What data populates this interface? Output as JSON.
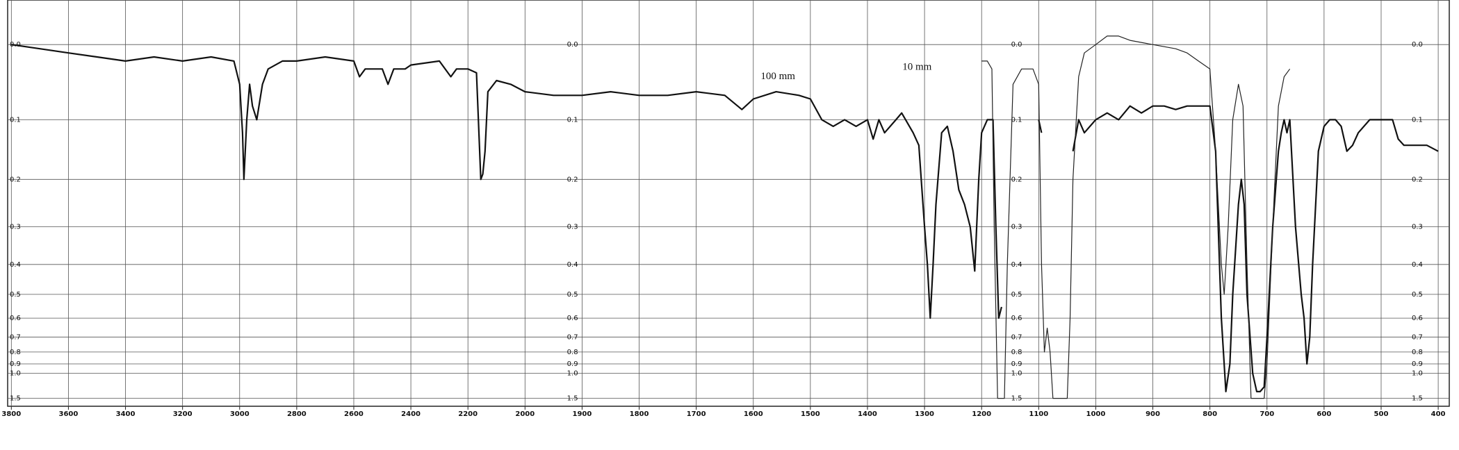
{
  "chart_data": {
    "type": "line",
    "yscale": "transmittance",
    "grid": true,
    "xlim": [
      3800,
      400
    ],
    "ylim": [
      -0.05,
      2
    ],
    "xticks": [
      3800,
      3600,
      3400,
      3200,
      3000,
      2800,
      2600,
      2400,
      2200,
      2000,
      1900,
      1800,
      1700,
      1600,
      1500,
      1400,
      1300,
      1200,
      1100,
      1000,
      900,
      800,
      700,
      600,
      500,
      400
    ],
    "yticks": [
      {
        "value": 0,
        "label": "0.0"
      },
      0.1,
      0.2,
      0.3,
      0.4,
      0.5,
      0.6,
      0.7,
      0.8,
      0.9,
      {
        "value": 1,
        "label": "1.0"
      },
      1.5
    ],
    "series": [
      {
        "name": "100 mm",
        "color": "#111111",
        "x": [
          3800,
          3700,
          3600,
          3500,
          3400,
          3300,
          3200,
          3100,
          3020,
          3000,
          2990,
          2985,
          2975,
          2965,
          2955,
          2940,
          2920,
          2900,
          2850,
          2800,
          2700,
          2600,
          2580,
          2560,
          2500,
          2480,
          2460,
          2420,
          2400,
          2300,
          2260,
          2240,
          2200,
          2170,
          2155,
          2148,
          2140,
          2130,
          2100,
          2050,
          2000,
          1950,
          1900,
          1850,
          1800,
          1750,
          1700,
          1650,
          1620,
          1600,
          1560,
          1520,
          1500,
          1480,
          1460,
          1440,
          1420,
          1400,
          1390,
          1380,
          1370,
          1350,
          1340,
          1320,
          1310,
          1300,
          1295,
          1290,
          1285,
          1280,
          1270,
          1260,
          1250,
          1240,
          1230,
          1220,
          1212,
          1205,
          1200,
          1190,
          1180,
          1175,
          1170,
          1165,
          1160,
          1100,
          1095,
          1090,
          1040,
          1030,
          1020,
          1000,
          980,
          960,
          940,
          920,
          900,
          880,
          860,
          840,
          820,
          800,
          790,
          780,
          772,
          765,
          760,
          750,
          745,
          740,
          735,
          725,
          718,
          712,
          705,
          700,
          690,
          680,
          675,
          670,
          665,
          660,
          650,
          640,
          635,
          630,
          625,
          620,
          610,
          600,
          590,
          580,
          570,
          560,
          550,
          540,
          520,
          500,
          480,
          470,
          460,
          440,
          420,
          400
        ],
        "values": [
          0,
          0.005,
          0.01,
          0.015,
          0.02,
          0.015,
          0.02,
          0.015,
          0.02,
          0.05,
          0.12,
          0.2,
          0.1,
          0.05,
          0.08,
          0.1,
          0.05,
          0.03,
          0.02,
          0.02,
          0.015,
          0.02,
          0.04,
          0.03,
          0.03,
          0.05,
          0.03,
          0.03,
          0.025,
          0.02,
          0.04,
          0.03,
          0.03,
          0.035,
          0.2,
          0.19,
          0.15,
          0.06,
          0.045,
          0.05,
          0.06,
          0.065,
          0.065,
          0.06,
          0.065,
          0.065,
          0.06,
          0.065,
          0.085,
          0.07,
          0.06,
          0.065,
          0.07,
          0.1,
          0.11,
          0.1,
          0.11,
          0.1,
          0.13,
          0.1,
          0.12,
          0.1,
          0.09,
          0.12,
          0.14,
          0.3,
          0.4,
          0.6,
          0.4,
          0.25,
          0.12,
          0.11,
          0.15,
          0.22,
          0.25,
          0.3,
          0.42,
          0.2,
          0.12,
          0.1,
          0.1,
          0.3,
          0.6,
          0.55,
          null,
          0.1,
          0.12,
          null,
          0.15,
          0.1,
          0.12,
          0.1,
          0.09,
          0.1,
          0.08,
          0.09,
          0.08,
          0.08,
          0.085,
          0.08,
          0.08,
          0.08,
          0.15,
          0.6,
          1.3,
          0.9,
          0.5,
          0.25,
          0.2,
          0.25,
          0.5,
          1.0,
          1.3,
          1.3,
          1.2,
          0.7,
          0.3,
          0.15,
          0.12,
          0.1,
          0.12,
          0.1,
          0.3,
          0.5,
          0.6,
          0.9,
          0.7,
          0.4,
          0.15,
          0.11,
          0.1,
          0.1,
          0.11,
          0.15,
          0.14,
          0.12,
          0.1,
          0.1,
          0.1,
          0.13,
          0.14,
          0.14,
          0.14,
          0.15
        ]
      },
      {
        "name": "10 mm",
        "color": "#222222",
        "x": [
          1200,
          1190,
          1182,
          1178,
          1172,
          1160,
          1155,
          1145,
          1130,
          1110,
          1100,
          1095,
          1090,
          1085,
          1080,
          1075,
          1050,
          1045,
          1040,
          1030,
          1020,
          1000,
          980,
          960,
          940,
          900,
          860,
          840,
          820,
          800,
          790,
          780,
          775,
          768,
          760,
          750,
          742,
          735,
          728,
          705,
          700,
          690,
          680,
          670,
          660
        ],
        "values": [
          0.02,
          0.02,
          0.03,
          0.3,
          1.5,
          1.5,
          0.4,
          0.05,
          0.03,
          0.03,
          0.05,
          0.4,
          0.8,
          0.65,
          0.8,
          1.5,
          1.5,
          0.6,
          0.2,
          0.04,
          0.01,
          0,
          -0.01,
          -0.01,
          -0.005,
          0,
          0.005,
          0.01,
          0.02,
          0.03,
          0.15,
          0.4,
          0.5,
          0.3,
          0.1,
          0.05,
          0.08,
          0.4,
          1.5,
          1.5,
          0.9,
          0.3,
          0.08,
          0.04,
          0.03
        ]
      }
    ]
  }
}
